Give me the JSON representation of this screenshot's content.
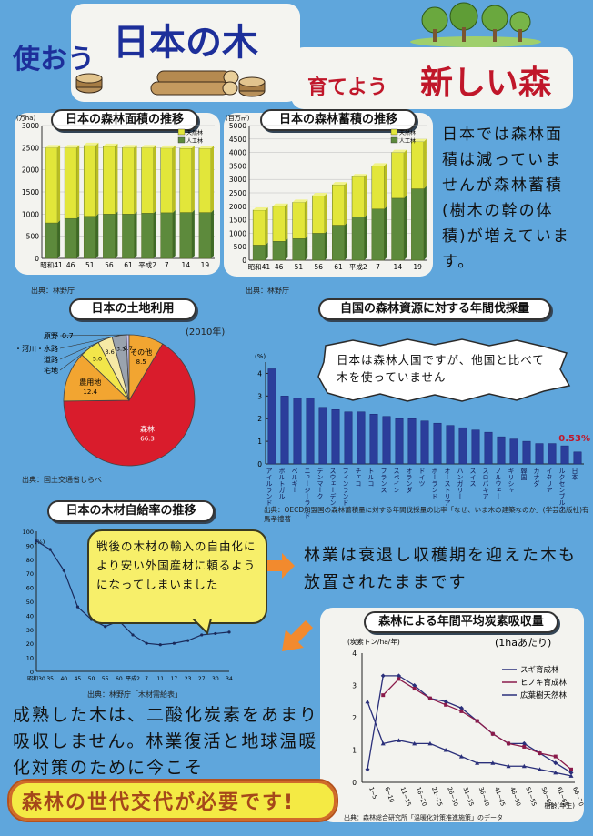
{
  "header": {
    "title_small1": "使おう",
    "title_big1": "日本の木",
    "title_small2": "育てよう",
    "title_big2": "新しい森"
  },
  "colors": {
    "bg": "#5fa6dc",
    "planted": "#5d8a3c",
    "natural": "#e2e63a",
    "bar_blue": "#2b3e9b",
    "pie_red": "#d91c2c",
    "pie_orange": "#f2a531",
    "pie_yellow": "#f2e64a",
    "pie_cream": "#f6e9a5",
    "pie_gray": "#9aa3ae",
    "pie_blue": "#5a7bd6",
    "pie_lavender": "#c8c2ef"
  },
  "area_chart": {
    "title": "日本の森林面積の推移",
    "unit": "(万ha)",
    "source": "出典：林野庁",
    "legend": [
      "天然林",
      "人工林"
    ],
    "chart_data": {
      "type": "bar",
      "categories": [
        "昭和41",
        "46",
        "51",
        "56",
        "61",
        "平成2",
        "7",
        "14",
        "19"
      ],
      "series": [
        {
          "name": "人工林",
          "values": [
            800,
            900,
            950,
            1000,
            1000,
            1020,
            1030,
            1036,
            1035
          ]
        },
        {
          "name": "天然林",
          "values": [
            1700,
            1600,
            1600,
            1530,
            1500,
            1480,
            1460,
            1450,
            1450
          ]
        }
      ],
      "ylim": [
        0,
        3000
      ],
      "yticks": [
        0,
        500,
        1000,
        1500,
        2000,
        2500,
        3000
      ]
    }
  },
  "volume_chart": {
    "title": "日本の森林蓄積の推移",
    "unit": "(百万㎥)",
    "source": "出典：林野庁",
    "legend": [
      "天然林",
      "人工林"
    ],
    "chart_data": {
      "type": "bar",
      "categories": [
        "昭和41",
        "46",
        "51",
        "56",
        "61",
        "平成2",
        "7",
        "14",
        "19"
      ],
      "series": [
        {
          "name": "人工林",
          "values": [
            560,
            700,
            800,
            1000,
            1300,
            1600,
            1900,
            2300,
            2650
          ]
        },
        {
          "name": "天然林",
          "values": [
            1300,
            1300,
            1350,
            1400,
            1500,
            1500,
            1600,
            1700,
            1750
          ]
        }
      ],
      "ylim": [
        0,
        5000
      ],
      "yticks": [
        0,
        500,
        1000,
        1500,
        2000,
        2500,
        3000,
        3500,
        4000,
        4500,
        5000
      ]
    }
  },
  "right_text": "日本では森林面積は減っていませんが森林蓄積(樹木の幹の体積)が増えています。",
  "land_chart": {
    "title": "日本の土地利用",
    "year": "(2010年)",
    "source": "出典：国土交通省しらべ",
    "chart_data": {
      "type": "pie",
      "labels": [
        "森林",
        "農用地",
        "宅地",
        "道路",
        "水面・河川・水路",
        "原野",
        "その他"
      ],
      "values": [
        66.3,
        12.4,
        5.0,
        3.6,
        3.5,
        0.7,
        8.5
      ],
      "display_values": [
        "66.3",
        "12.4",
        "5.0",
        "3.6",
        "3.5",
        "0.7",
        "8.5"
      ]
    }
  },
  "harvest_chart": {
    "title": "自国の森林資源に対する年間伐採量",
    "unit": "(%)",
    "bubble": "日本は森林大国ですが、他国と比べて木を使っていません",
    "japan_value_label": "0.53%",
    "source": "出典：OECD加盟国の森林蓄積量に対する年間伐採量の比率「なぜ、いま木の建築なのか」(学芸出版社)有馬孝禮著",
    "chart_data": {
      "type": "bar",
      "categories": [
        "アイルランド",
        "ポルトガル",
        "ベルギー",
        "ニュージーランド",
        "デンマーク",
        "スウェーデン",
        "フィンランド",
        "チェコ",
        "トルコ",
        "フランス",
        "スペイン",
        "オランダ",
        "ドイツ",
        "ポーランド",
        "オーストリア",
        "ハンガリー",
        "スイス",
        "スロバキア",
        "ノルウェー",
        "ギリシャ",
        "韓国",
        "カナダ",
        "イタリア",
        "ルクセンブルク",
        "日本"
      ],
      "values": [
        4.2,
        3.0,
        2.9,
        2.9,
        2.5,
        2.4,
        2.3,
        2.3,
        2.2,
        2.1,
        2.0,
        2.0,
        1.9,
        1.8,
        1.7,
        1.6,
        1.5,
        1.4,
        1.2,
        1.1,
        1.0,
        0.9,
        0.9,
        0.8,
        0.53
      ],
      "ylim": [
        0,
        4.5
      ],
      "yticks": [
        0,
        1,
        2,
        3,
        4
      ]
    }
  },
  "self_chart": {
    "title": "日本の木材自給率の推移",
    "unit": "(%)",
    "source": "出典：林野庁「木材需給表」",
    "bubble": "戦後の木材の輸入の自由化により安い外国産材に頼るようになってしまいました",
    "chart_data": {
      "type": "line",
      "x": [
        "昭和30",
        "35",
        "40",
        "45",
        "50",
        "55",
        "60",
        "平成2",
        "7",
        "11",
        "17",
        "23",
        "27",
        "30",
        "34"
      ],
      "y": [
        93,
        87,
        72,
        46,
        37,
        32,
        36,
        26,
        20,
        19,
        20,
        22,
        26,
        27,
        28
      ],
      "ylim": [
        0,
        100
      ],
      "yticks": [
        0,
        10,
        20,
        30,
        40,
        50,
        60,
        70,
        80,
        90,
        100
      ]
    }
  },
  "mid_text": "林業は衰退し収穫期を迎えた木も放置されたままです",
  "carbon_chart": {
    "title": "森林による年間平均炭素吸収量",
    "unit": "(炭素トン/ha/年)",
    "sub": "(1haあたり)",
    "xlabel": "樹齢(年生)",
    "source": "出典：森林総合研究所「温暖化対策推進施策」のデータ",
    "legend": [
      "スギ育成林",
      "ヒノキ育成林",
      "広葉樹天然林"
    ],
    "chart_data": {
      "type": "line",
      "x": [
        "1~5",
        "6~10",
        "11~15",
        "16~20",
        "21~25",
        "26~30",
        "31~35",
        "36~40",
        "41~45",
        "46~50",
        "51~55",
        "56~60",
        "61~65",
        "66~70"
      ],
      "series": [
        {
          "name": "スギ育成林",
          "values": [
            0.4,
            3.3,
            3.3,
            3.0,
            2.6,
            2.5,
            2.3,
            1.9,
            1.5,
            1.2,
            1.2,
            0.9,
            0.6,
            0.3
          ]
        },
        {
          "name": "ヒノキ育成林",
          "values": [
            null,
            2.7,
            3.2,
            2.9,
            2.6,
            2.4,
            2.2,
            1.9,
            1.5,
            1.2,
            1.1,
            0.9,
            0.8,
            0.4
          ]
        },
        {
          "name": "広葉樹天然林",
          "values": [
            2.5,
            1.2,
            1.3,
            1.2,
            1.2,
            1.0,
            0.8,
            0.6,
            0.6,
            0.5,
            0.5,
            0.4,
            0.3,
            0.2
          ]
        }
      ],
      "ylim": [
        0,
        4
      ],
      "yticks": [
        0,
        1,
        2,
        3,
        4
      ]
    }
  },
  "bottom_text": "成熟した木は、二酸化炭素をあまり吸収しません。林業復活と地球温暖化対策のために今こそ",
  "bottom_banner": "森林の世代交代が必要です!"
}
